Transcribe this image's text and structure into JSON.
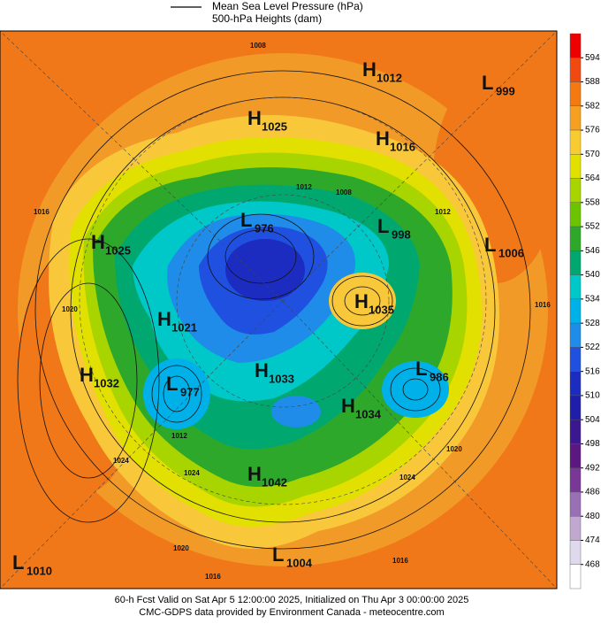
{
  "legend": {
    "items": [
      "Mean Sea Level Pressure (hPa)",
      "500-hPa Heights (dam)"
    ]
  },
  "colorbar": {
    "ticks": [
      594,
      588,
      582,
      576,
      570,
      564,
      558,
      552,
      546,
      540,
      534,
      528,
      522,
      516,
      510,
      504,
      498,
      492,
      486,
      480,
      474,
      468
    ]
  },
  "centers": [
    {
      "letter": "H",
      "value": "1012"
    },
    {
      "letter": "L",
      "value": "999"
    },
    {
      "letter": "H",
      "value": "1025"
    },
    {
      "letter": "H",
      "value": "1016"
    },
    {
      "letter": "L",
      "value": "976"
    },
    {
      "letter": "L",
      "value": "998"
    },
    {
      "letter": "H",
      "value": "1025"
    },
    {
      "letter": "L",
      "value": "1006"
    },
    {
      "letter": "H",
      "value": "1035"
    },
    {
      "letter": "H",
      "value": "1021"
    },
    {
      "letter": "H",
      "value": "1032"
    },
    {
      "letter": "L",
      "value": "977"
    },
    {
      "letter": "L",
      "value": "986"
    },
    {
      "letter": "H",
      "value": "1033"
    },
    {
      "letter": "H",
      "value": "1034"
    },
    {
      "letter": "H",
      "value": "1042"
    },
    {
      "letter": "L",
      "value": "1010"
    },
    {
      "letter": "L",
      "value": "1004"
    }
  ],
  "contour_labels": [
    "1016",
    "1008",
    "1012",
    "1008",
    "1020",
    "1016",
    "1012",
    "1024",
    "1024",
    "1020",
    "1024",
    "1016",
    "1016",
    "1012",
    "1020"
  ],
  "footer": [
    "60-h Fcst Valid on Sat Apr  5 12:00:00 2025, Initialized on Thu Apr  3 00:00:00 2025",
    "CMC-GDPS data provided by Environment Canada - meteocentre.com"
  ]
}
